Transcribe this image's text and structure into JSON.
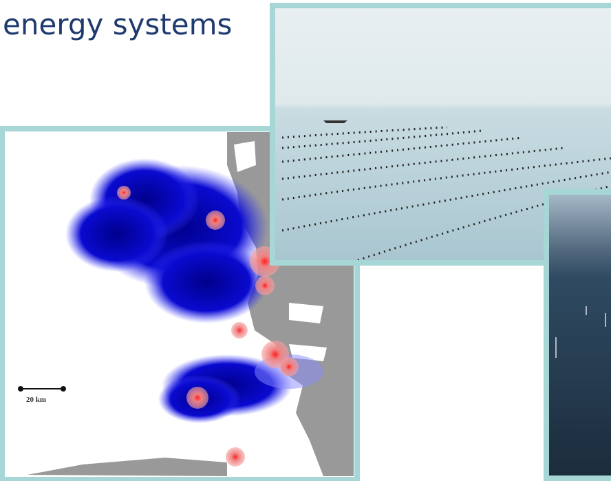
{
  "header": {
    "title": "energy systems"
  },
  "map": {
    "scale_label": "20 km"
  }
}
